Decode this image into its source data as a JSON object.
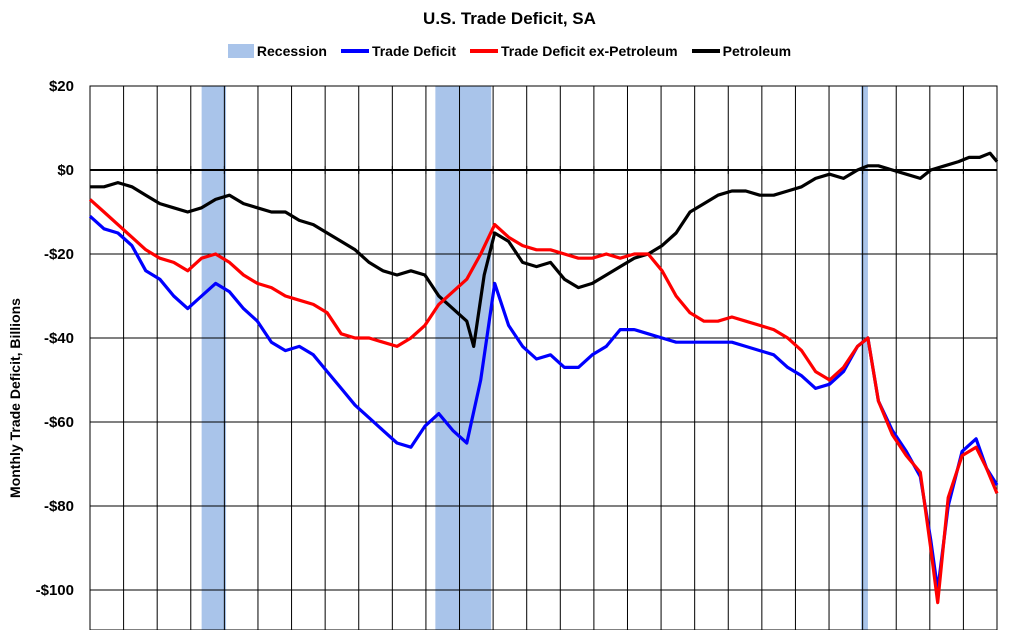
{
  "chart_data": {
    "type": "line",
    "title": "U.S. Trade Deficit, SA",
    "ylabel": "Monthly Trade Deficit, Billions",
    "xlabel": "",
    "ylim": [
      -108,
      20
    ],
    "xlim": [
      1998.0,
      2024.0
    ],
    "yticks": [
      20,
      0,
      -20,
      -40,
      -60,
      -80,
      -100
    ],
    "ytick_labels": [
      "$20",
      "$0",
      "-$20",
      "-$40",
      "-$60",
      "-$80",
      "-$100"
    ],
    "grid": true,
    "legend_position": "top",
    "recession": {
      "name": "Recession",
      "color": "#a9c4ea",
      "periods": [
        [
          2001.2,
          2001.9
        ],
        [
          2007.9,
          2009.5
        ],
        [
          2020.1,
          2020.3
        ]
      ]
    },
    "series": [
      {
        "name": "Trade Deficit",
        "color": "#0000ff",
        "points": [
          [
            1998.0,
            -11
          ],
          [
            1998.4,
            -14
          ],
          [
            1998.8,
            -15
          ],
          [
            1999.2,
            -18
          ],
          [
            1999.6,
            -24
          ],
          [
            2000.0,
            -26
          ],
          [
            2000.4,
            -30
          ],
          [
            2000.8,
            -33
          ],
          [
            2001.2,
            -30
          ],
          [
            2001.6,
            -27
          ],
          [
            2002.0,
            -29
          ],
          [
            2002.4,
            -33
          ],
          [
            2002.8,
            -36
          ],
          [
            2003.2,
            -41
          ],
          [
            2003.6,
            -43
          ],
          [
            2004.0,
            -42
          ],
          [
            2004.4,
            -44
          ],
          [
            2004.8,
            -48
          ],
          [
            2005.2,
            -52
          ],
          [
            2005.6,
            -56
          ],
          [
            2006.0,
            -59
          ],
          [
            2006.4,
            -62
          ],
          [
            2006.8,
            -65
          ],
          [
            2007.2,
            -66
          ],
          [
            2007.6,
            -61
          ],
          [
            2008.0,
            -58
          ],
          [
            2008.4,
            -62
          ],
          [
            2008.8,
            -65
          ],
          [
            2009.2,
            -50
          ],
          [
            2009.6,
            -27
          ],
          [
            2010.0,
            -37
          ],
          [
            2010.4,
            -42
          ],
          [
            2010.8,
            -45
          ],
          [
            2011.2,
            -44
          ],
          [
            2011.6,
            -47
          ],
          [
            2012.0,
            -47
          ],
          [
            2012.4,
            -44
          ],
          [
            2012.8,
            -42
          ],
          [
            2013.2,
            -38
          ],
          [
            2013.6,
            -38
          ],
          [
            2014.0,
            -39
          ],
          [
            2014.4,
            -40
          ],
          [
            2014.8,
            -41
          ],
          [
            2015.2,
            -41
          ],
          [
            2015.6,
            -41
          ],
          [
            2016.0,
            -41
          ],
          [
            2016.4,
            -41
          ],
          [
            2016.8,
            -42
          ],
          [
            2017.2,
            -43
          ],
          [
            2017.6,
            -44
          ],
          [
            2018.0,
            -47
          ],
          [
            2018.4,
            -49
          ],
          [
            2018.8,
            -52
          ],
          [
            2019.2,
            -51
          ],
          [
            2019.6,
            -48
          ],
          [
            2020.0,
            -42
          ],
          [
            2020.3,
            -40
          ],
          [
            2020.6,
            -55
          ],
          [
            2021.0,
            -62
          ],
          [
            2021.4,
            -67
          ],
          [
            2021.8,
            -73
          ],
          [
            2022.1,
            -88
          ],
          [
            2022.3,
            -100
          ],
          [
            2022.6,
            -80
          ],
          [
            2023.0,
            -67
          ],
          [
            2023.4,
            -64
          ],
          [
            2023.7,
            -71
          ],
          [
            2024.0,
            -75
          ]
        ]
      },
      {
        "name": "Trade Deficit ex-Petroleum",
        "color": "#ff0000",
        "points": [
          [
            1998.0,
            -7
          ],
          [
            1998.4,
            -10
          ],
          [
            1998.8,
            -13
          ],
          [
            1999.2,
            -16
          ],
          [
            1999.6,
            -19
          ],
          [
            2000.0,
            -21
          ],
          [
            2000.4,
            -22
          ],
          [
            2000.8,
            -24
          ],
          [
            2001.2,
            -21
          ],
          [
            2001.6,
            -20
          ],
          [
            2002.0,
            -22
          ],
          [
            2002.4,
            -25
          ],
          [
            2002.8,
            -27
          ],
          [
            2003.2,
            -28
          ],
          [
            2003.6,
            -30
          ],
          [
            2004.0,
            -31
          ],
          [
            2004.4,
            -32
          ],
          [
            2004.8,
            -34
          ],
          [
            2005.2,
            -39
          ],
          [
            2005.6,
            -40
          ],
          [
            2006.0,
            -40
          ],
          [
            2006.4,
            -41
          ],
          [
            2006.8,
            -42
          ],
          [
            2007.2,
            -40
          ],
          [
            2007.6,
            -37
          ],
          [
            2008.0,
            -32
          ],
          [
            2008.4,
            -29
          ],
          [
            2008.8,
            -26
          ],
          [
            2009.2,
            -20
          ],
          [
            2009.6,
            -13
          ],
          [
            2010.0,
            -16
          ],
          [
            2010.4,
            -18
          ],
          [
            2010.8,
            -19
          ],
          [
            2011.2,
            -19
          ],
          [
            2011.6,
            -20
          ],
          [
            2012.0,
            -21
          ],
          [
            2012.4,
            -21
          ],
          [
            2012.8,
            -20
          ],
          [
            2013.2,
            -21
          ],
          [
            2013.6,
            -20
          ],
          [
            2014.0,
            -20
          ],
          [
            2014.4,
            -24
          ],
          [
            2014.8,
            -30
          ],
          [
            2015.2,
            -34
          ],
          [
            2015.6,
            -36
          ],
          [
            2016.0,
            -36
          ],
          [
            2016.4,
            -35
          ],
          [
            2016.8,
            -36
          ],
          [
            2017.2,
            -37
          ],
          [
            2017.6,
            -38
          ],
          [
            2018.0,
            -40
          ],
          [
            2018.4,
            -43
          ],
          [
            2018.8,
            -48
          ],
          [
            2019.2,
            -50
          ],
          [
            2019.6,
            -47
          ],
          [
            2020.0,
            -42
          ],
          [
            2020.3,
            -40
          ],
          [
            2020.6,
            -55
          ],
          [
            2021.0,
            -63
          ],
          [
            2021.4,
            -68
          ],
          [
            2021.8,
            -72
          ],
          [
            2022.1,
            -90
          ],
          [
            2022.3,
            -103
          ],
          [
            2022.6,
            -78
          ],
          [
            2023.0,
            -68
          ],
          [
            2023.4,
            -66
          ],
          [
            2023.7,
            -71
          ],
          [
            2024.0,
            -77
          ]
        ]
      },
      {
        "name": "Petroleum",
        "color": "#000000",
        "points": [
          [
            1998.0,
            -4
          ],
          [
            1998.4,
            -4
          ],
          [
            1998.8,
            -3
          ],
          [
            1999.2,
            -4
          ],
          [
            1999.6,
            -6
          ],
          [
            2000.0,
            -8
          ],
          [
            2000.4,
            -9
          ],
          [
            2000.8,
            -10
          ],
          [
            2001.2,
            -9
          ],
          [
            2001.6,
            -7
          ],
          [
            2002.0,
            -6
          ],
          [
            2002.4,
            -8
          ],
          [
            2002.8,
            -9
          ],
          [
            2003.2,
            -10
          ],
          [
            2003.6,
            -10
          ],
          [
            2004.0,
            -12
          ],
          [
            2004.4,
            -13
          ],
          [
            2004.8,
            -15
          ],
          [
            2005.2,
            -17
          ],
          [
            2005.6,
            -19
          ],
          [
            2006.0,
            -22
          ],
          [
            2006.4,
            -24
          ],
          [
            2006.8,
            -25
          ],
          [
            2007.2,
            -24
          ],
          [
            2007.6,
            -25
          ],
          [
            2008.0,
            -30
          ],
          [
            2008.4,
            -33
          ],
          [
            2008.8,
            -36
          ],
          [
            2009.0,
            -42
          ],
          [
            2009.3,
            -25
          ],
          [
            2009.6,
            -15
          ],
          [
            2010.0,
            -17
          ],
          [
            2010.4,
            -22
          ],
          [
            2010.8,
            -23
          ],
          [
            2011.2,
            -22
          ],
          [
            2011.6,
            -26
          ],
          [
            2012.0,
            -28
          ],
          [
            2012.4,
            -27
          ],
          [
            2012.8,
            -25
          ],
          [
            2013.2,
            -23
          ],
          [
            2013.6,
            -21
          ],
          [
            2014.0,
            -20
          ],
          [
            2014.4,
            -18
          ],
          [
            2014.8,
            -15
          ],
          [
            2015.2,
            -10
          ],
          [
            2015.6,
            -8
          ],
          [
            2016.0,
            -6
          ],
          [
            2016.4,
            -5
          ],
          [
            2016.8,
            -5
          ],
          [
            2017.2,
            -6
          ],
          [
            2017.6,
            -6
          ],
          [
            2018.0,
            -5
          ],
          [
            2018.4,
            -4
          ],
          [
            2018.8,
            -2
          ],
          [
            2019.2,
            -1
          ],
          [
            2019.6,
            -2
          ],
          [
            2020.0,
            0
          ],
          [
            2020.3,
            1
          ],
          [
            2020.6,
            1
          ],
          [
            2021.0,
            0
          ],
          [
            2021.4,
            -1
          ],
          [
            2021.8,
            -2
          ],
          [
            2022.1,
            0
          ],
          [
            2022.5,
            1
          ],
          [
            2022.9,
            2
          ],
          [
            2023.2,
            3
          ],
          [
            2023.5,
            3
          ],
          [
            2023.8,
            4
          ],
          [
            2024.0,
            2
          ]
        ]
      }
    ]
  }
}
